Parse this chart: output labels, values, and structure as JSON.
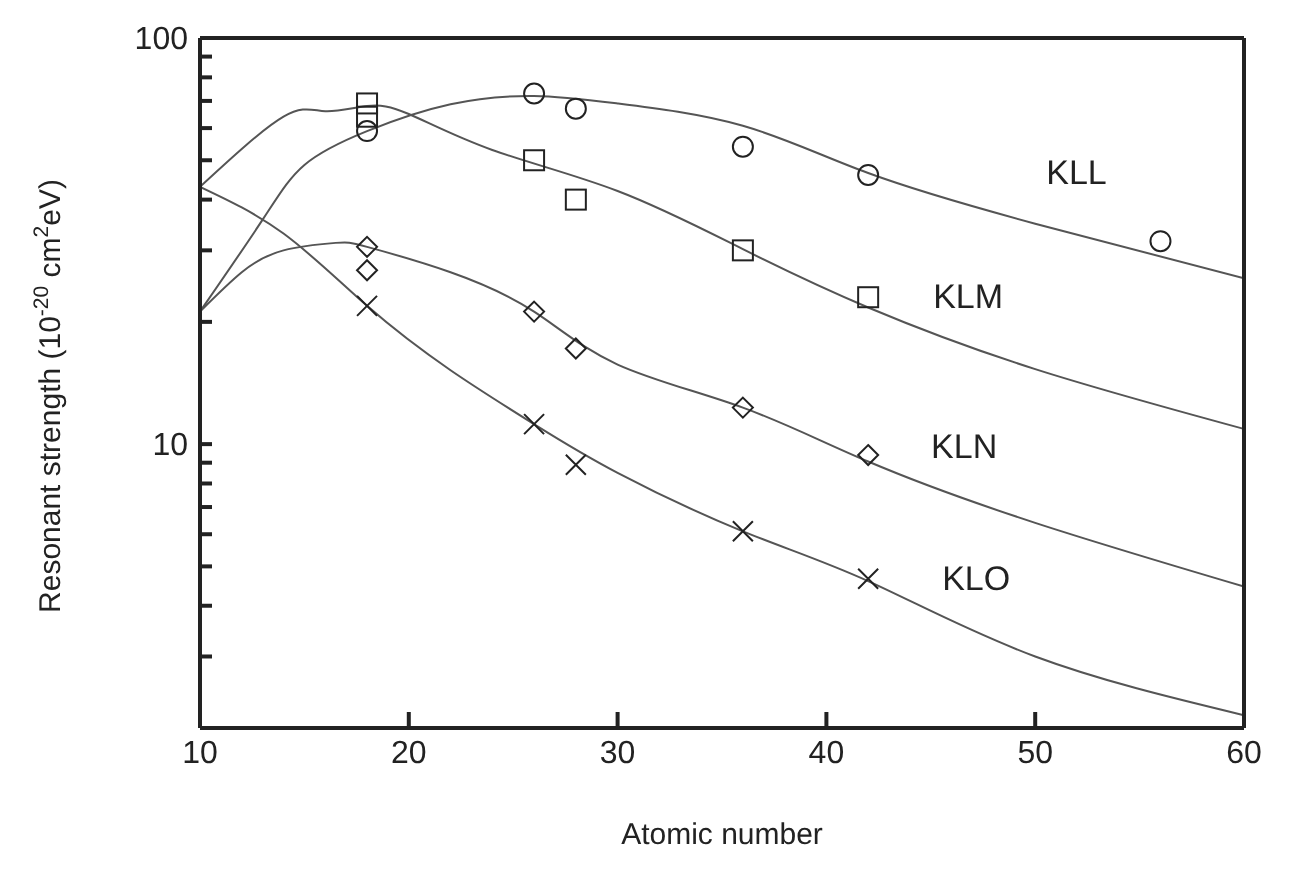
{
  "chart_data": {
    "type": "scatter",
    "xlabel": "Atomic number",
    "ylabel": "Resonant strength (10$^{-20}$ cm$^{2}$eV)",
    "log": "y",
    "legend": false,
    "xlim": [
      10,
      60
    ],
    "xticks": [
      10,
      20,
      30,
      40,
      50,
      60
    ],
    "ylim": [
      2,
      100
    ],
    "yticks": [
      {
        "value": 2,
        "label": null
      },
      {
        "value": 3,
        "label": null
      },
      {
        "value": 4,
        "label": null
      },
      {
        "value": 5,
        "label": null
      },
      {
        "value": 6,
        "label": null
      },
      {
        "value": 7,
        "label": null
      },
      {
        "value": 8,
        "label": null
      },
      {
        "value": 9,
        "label": null
      },
      10,
      {
        "value": 20,
        "label": null
      },
      {
        "value": 30,
        "label": null
      },
      {
        "value": 40,
        "label": null
      },
      {
        "value": 50,
        "label": null
      },
      {
        "value": 60,
        "label": null
      },
      {
        "value": 70,
        "label": null
      },
      {
        "value": 80,
        "label": null
      },
      {
        "value": 90,
        "label": null
      },
      100
    ],
    "series": [
      {
        "name": "KLL",
        "marker": "circle",
        "color": "#222222",
        "x": [
          18,
          26,
          28,
          36,
          42,
          56
        ],
        "values": [
          59,
          73,
          67,
          54,
          46,
          31.6
        ]
      },
      {
        "name": "KLM",
        "marker": "square",
        "color": "#222222",
        "x": [
          18,
          18,
          26,
          28,
          36,
          42
        ],
        "values": [
          69,
          64,
          50,
          40,
          30,
          23
        ]
      },
      {
        "name": "KLN",
        "marker": "diamond",
        "color": "#222222",
        "x": [
          18,
          18,
          26,
          28,
          36,
          42
        ],
        "values": [
          30.6,
          26.8,
          21.2,
          17.2,
          12.3,
          9.4
        ]
      },
      {
        "name": "KLO",
        "marker": "cross",
        "color": "#222222",
        "x": [
          18,
          26,
          28,
          36,
          42
        ],
        "values": [
          21.9,
          11.2,
          8.9,
          6.1,
          4.66
        ]
      },
      {
        "type": "line",
        "marker": "none",
        "line_style": "solid",
        "color": "#555555",
        "x": [
          10,
          13,
          15,
          18,
          22,
          26,
          30,
          36,
          42,
          50,
          60
        ],
        "values": [
          21.2,
          35.7,
          48.7,
          59,
          68.7,
          72,
          69,
          60.8,
          46.5,
          34.9,
          25.6
        ]
      },
      {
        "type": "line",
        "marker": "none",
        "line_style": "solid",
        "color": "#555555",
        "x": [
          10,
          14,
          16,
          18,
          20,
          24,
          30,
          36,
          42,
          50,
          60
        ],
        "values": [
          43,
          64,
          66,
          68,
          65,
          53,
          42,
          30.2,
          21.7,
          15.3,
          10.9
        ]
      },
      {
        "type": "line",
        "marker": "none",
        "line_style": "solid",
        "color": "#555555",
        "x": [
          10,
          12,
          14,
          16.5,
          18,
          22,
          26,
          30,
          36,
          42,
          50,
          60
        ],
        "values": [
          21.2,
          26.5,
          30,
          31.3,
          30.6,
          26.5,
          21.2,
          15.7,
          12.3,
          9.06,
          6.4,
          4.46
        ]
      },
      {
        "type": "line",
        "marker": "none",
        "line_style": "solid",
        "color": "#555555",
        "x": [
          10,
          14,
          18,
          22,
          26,
          30,
          36,
          42,
          50,
          60
        ],
        "values": [
          43,
          33,
          21.9,
          15.2,
          11.2,
          8.5,
          6.1,
          4.6,
          3.0,
          2.15
        ]
      }
    ]
  }
}
